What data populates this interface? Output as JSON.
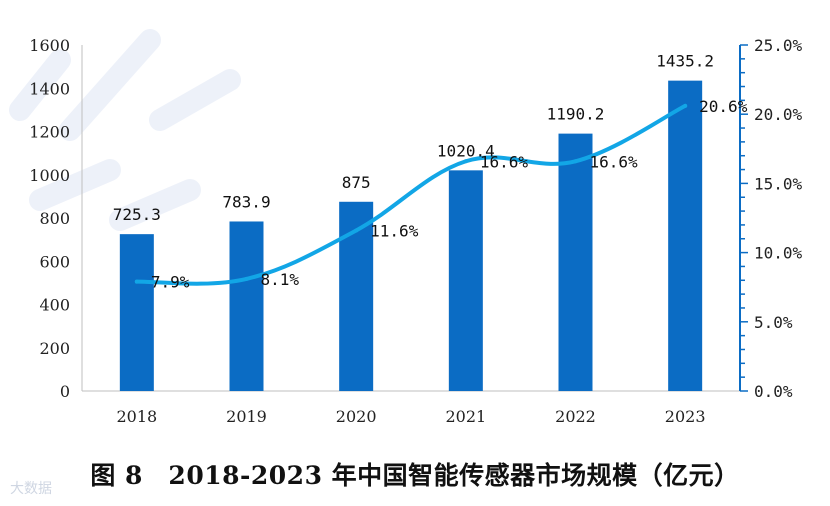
{
  "caption": "图 8　2018-2023 年中国智能传感器市场规模（亿元）",
  "watermark": "大数据",
  "colors": {
    "bar": "#0b6cc4",
    "line": "#12a6e6",
    "axis": "#0b6cc4"
  },
  "chart_data": {
    "type": "bar",
    "title": "",
    "categories": [
      "2018",
      "2019",
      "2020",
      "2021",
      "2022",
      "2023"
    ],
    "series": [
      {
        "type": "bar",
        "axis": "left",
        "values": [
          725.3,
          783.9,
          875,
          1020.4,
          1190.2,
          1435.2
        ],
        "labels": [
          "725.3",
          "783.9",
          "875",
          "1020.4",
          "1190.2",
          "1435.2"
        ]
      },
      {
        "type": "line",
        "axis": "right",
        "values": [
          7.9,
          8.1,
          11.6,
          16.6,
          16.6,
          20.6
        ],
        "labels": [
          "7.9%",
          "8.1%",
          "11.6%",
          "16.6%",
          "16.6%",
          "20.6%"
        ]
      }
    ],
    "y_left": {
      "ylim": [
        0,
        1600
      ],
      "ticks": [
        0,
        200,
        400,
        600,
        800,
        1000,
        1200,
        1400,
        1600
      ]
    },
    "y_right": {
      "ylim": [
        0,
        25
      ],
      "ticks": [
        "0.0%",
        "5.0%",
        "10.0%",
        "15.0%",
        "20.0%",
        "25.0%"
      ]
    },
    "grid": false,
    "legend": "none"
  }
}
